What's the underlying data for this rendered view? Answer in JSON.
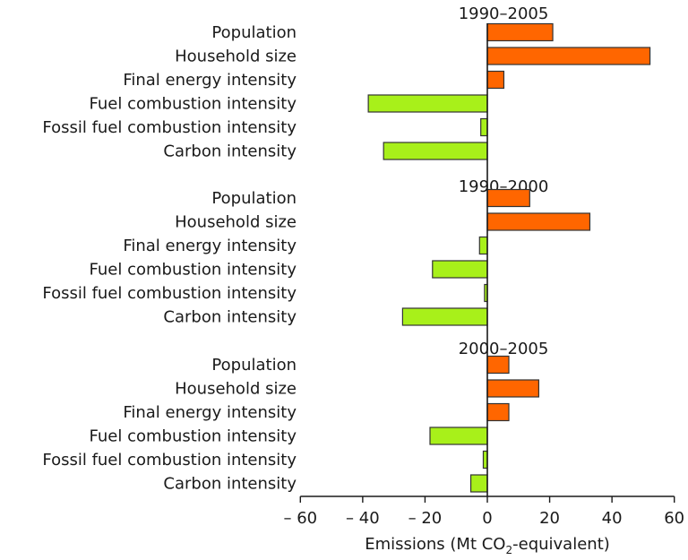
{
  "chart_data": {
    "type": "bar",
    "orientation": "horizontal",
    "xlabel_parts": [
      "Emissions (Mt CO",
      "2",
      "-equivalent)"
    ],
    "xlim": [
      -60,
      60
    ],
    "xticks": [
      -60,
      -40,
      -20,
      0,
      20,
      40,
      60
    ],
    "xtick_labels": [
      "– 60",
      "– 40",
      "– 20",
      "0",
      "20",
      "40",
      "60"
    ],
    "categories": [
      "Population",
      "Household size",
      "Final energy intensity",
      "Fuel combustion intensity",
      "Fossil fuel combustion intensity",
      "Carbon intensity"
    ],
    "colors": {
      "positive": "#ff6600",
      "negative": "#a8f01a",
      "stroke": "#333333"
    },
    "panels": [
      {
        "title": "1990–2005",
        "values": [
          21,
          52.2,
          5.3,
          -38.2,
          -2.1,
          -33.3
        ]
      },
      {
        "title": "1990–2000",
        "values": [
          13.6,
          32.9,
          -2.5,
          -17.6,
          -0.9,
          -27.2
        ]
      },
      {
        "title": "2000–2005",
        "values": [
          6.9,
          16.5,
          6.9,
          -18.4,
          -1.3,
          -5.3
        ]
      }
    ]
  }
}
